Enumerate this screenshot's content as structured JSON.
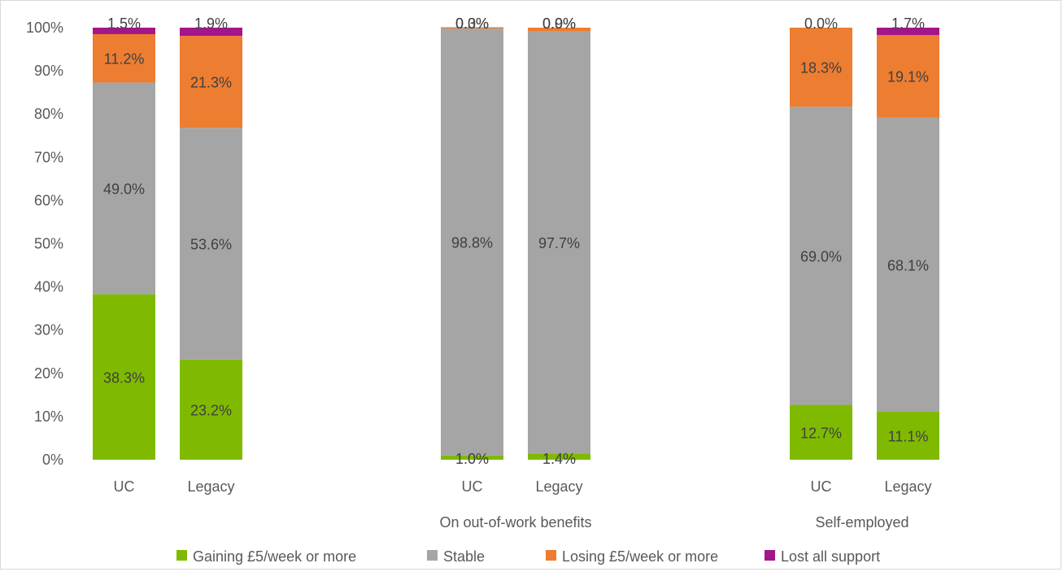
{
  "chart_data": {
    "type": "bar",
    "stacked": true,
    "y_unit": "percent",
    "ylim": [
      0,
      100
    ],
    "yticks": [
      "0%",
      "10%",
      "20%",
      "30%",
      "40%",
      "50%",
      "60%",
      "70%",
      "80%",
      "90%",
      "100%"
    ],
    "grid": false,
    "groups": [
      {
        "label": "",
        "bars": [
          "UC",
          "Legacy"
        ]
      },
      {
        "label": "On out-of-work benefits",
        "bars": [
          "UC",
          "Legacy"
        ]
      },
      {
        "label": "Self-employed",
        "bars": [
          "UC",
          "Legacy"
        ]
      }
    ],
    "categories": [
      "UC",
      "Legacy",
      "UC",
      "Legacy",
      "UC",
      "Legacy"
    ],
    "series": [
      {
        "name": "Gaining £5/week or more",
        "color": "#7fba00",
        "values": [
          38.3,
          23.2,
          1.0,
          1.4,
          12.7,
          11.1
        ],
        "labels": [
          "38.3%",
          "23.2%",
          "1.0%",
          "1.4%",
          "12.7%",
          "11.1%"
        ]
      },
      {
        "name": "Stable",
        "color": "#a5a5a5",
        "values": [
          49.0,
          53.6,
          98.8,
          97.7,
          69.0,
          68.1
        ],
        "labels": [
          "49.0%",
          "53.6%",
          "98.8%",
          "97.7%",
          "69.0%",
          "68.1%"
        ]
      },
      {
        "name": "Losing £5/week or more",
        "color": "#ed7d31",
        "values": [
          11.2,
          21.3,
          0.3,
          0.9,
          18.3,
          19.1
        ],
        "labels": [
          "11.2%",
          "21.3%",
          "0.3%",
          "0.9%",
          "18.3%",
          "19.1%"
        ]
      },
      {
        "name": "Lost all support",
        "color": "#a3168a",
        "values": [
          1.5,
          1.9,
          0.0,
          0.0,
          0.0,
          1.7
        ],
        "labels": [
          "1.5%",
          "1.9%",
          "0.0%",
          "0.0%",
          "0.0%",
          "1.7%"
        ]
      }
    ],
    "legend_position": "bottom"
  }
}
